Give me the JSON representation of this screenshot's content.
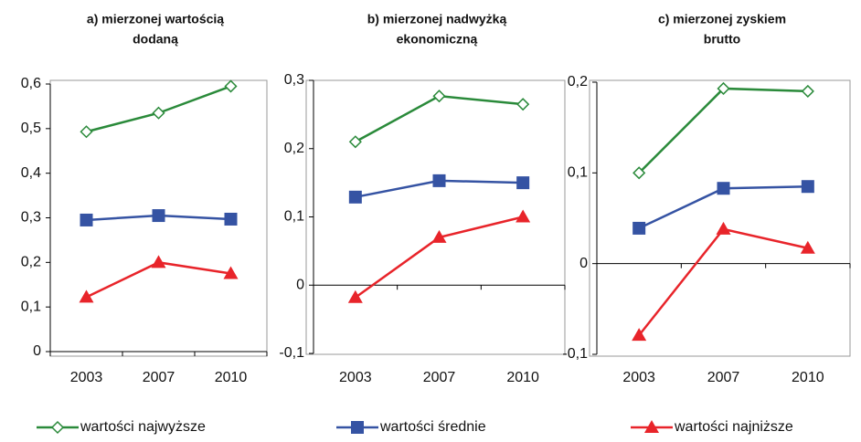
{
  "chart_data": [
    {
      "type": "line",
      "title": [
        "a) mierzonej wartością",
        "dodaną"
      ],
      "categories": [
        "2003",
        "2007",
        "2010"
      ],
      "series": [
        {
          "name": "wartości najwyższe",
          "color": "#2a8a3a",
          "marker": "diamond-open",
          "values": [
            0.493,
            0.535,
            0.595
          ]
        },
        {
          "name": "wartości średnie",
          "color": "#3553a3",
          "marker": "square",
          "values": [
            0.295,
            0.305,
            0.297
          ]
        },
        {
          "name": "wartości najniższe",
          "color": "#e8242a",
          "marker": "triangle",
          "values": [
            0.122,
            0.2,
            0.175
          ]
        }
      ],
      "ylim": [
        0,
        0.6
      ],
      "yticks": [
        0,
        {
          "value": 0.1,
          "label": "0,1"
        },
        {
          "value": 0.2,
          "label": "0,2"
        },
        {
          "value": 0.3,
          "label": "0,3"
        },
        {
          "value": 0.4,
          "label": "0,4"
        },
        {
          "value": 0.5,
          "label": "0,5"
        },
        {
          "value": 0.6,
          "label": "0,6"
        }
      ]
    },
    {
      "type": "line",
      "title": [
        "b) mierzonej nadwyżką",
        "ekonomiczną"
      ],
      "categories": [
        "2003",
        "2007",
        "2010"
      ],
      "series": [
        {
          "color": "#2a8a3a",
          "marker": "diamond-open",
          "values": [
            0.21,
            0.277,
            0.265
          ]
        },
        {
          "color": "#3553a3",
          "marker": "square",
          "values": [
            0.129,
            0.153,
            0.15
          ]
        },
        {
          "color": "#e8242a",
          "marker": "triangle",
          "values": [
            -0.018,
            0.07,
            0.1
          ]
        }
      ],
      "ylim": [
        -0.1,
        0.3
      ],
      "yticks": [
        {
          "value": -0.1,
          "label": "-0,1"
        },
        0,
        {
          "value": 0.1,
          "label": "0,1"
        },
        {
          "value": 0.2,
          "label": "0,2"
        },
        {
          "value": 0.3,
          "label": "0,3"
        }
      ]
    },
    {
      "type": "line",
      "title": [
        "c) mierzonej zyskiem",
        "brutto"
      ],
      "categories": [
        "2003",
        "2007",
        "2010"
      ],
      "series": [
        {
          "color": "#2a8a3a",
          "marker": "diamond-open",
          "values": [
            0.1,
            0.193,
            0.19
          ]
        },
        {
          "color": "#3553a3",
          "marker": "square",
          "values": [
            0.039,
            0.083,
            0.085
          ]
        },
        {
          "color": "#e8242a",
          "marker": "triangle",
          "values": [
            -0.079,
            0.038,
            0.017
          ]
        }
      ],
      "ylim": [
        -0.1,
        0.2
      ],
      "yticks": [
        {
          "value": -0.1,
          "label": "-0,1"
        },
        0,
        {
          "value": 0.1,
          "label": "0,1"
        },
        {
          "value": 0.2,
          "label": "0,2"
        }
      ]
    }
  ]
}
